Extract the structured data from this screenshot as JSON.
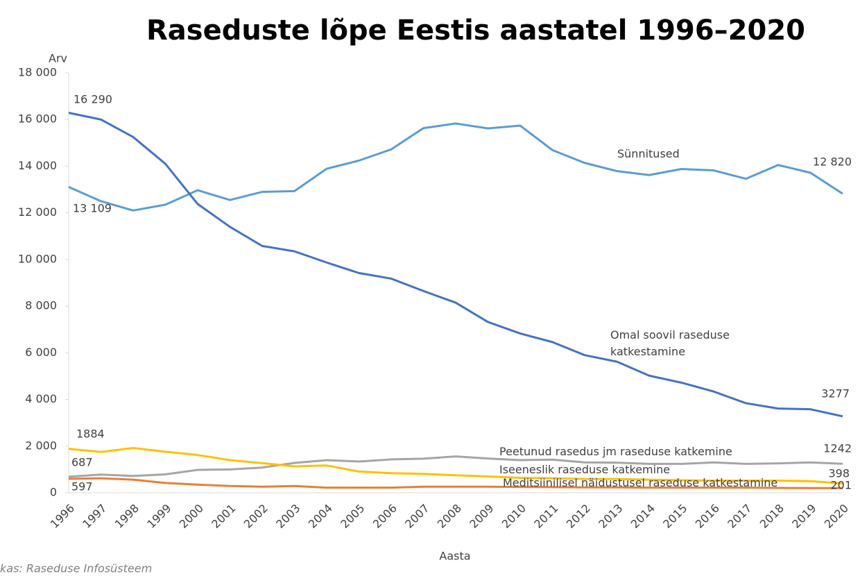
{
  "chart_data": {
    "type": "line",
    "title": "Raseduste lõpe Eestis aastatel 1996–2020",
    "y_label": "Arv",
    "x_label": "Aasta",
    "source": "kas: Raseduse Infosüsteem",
    "categories": [
      "1996",
      "1997",
      "1998",
      "1999",
      "2000",
      "2001",
      "2002",
      "2003",
      "2004",
      "2005",
      "2006",
      "2007",
      "2008",
      "2009",
      "2010",
      "2011",
      "2012",
      "2013",
      "2014",
      "2015",
      "2016",
      "2017",
      "2018",
      "2019",
      "2020"
    ],
    "ylim": [
      0,
      18000
    ],
    "yticks": [
      0,
      {
        "value": 2000,
        "label": "2 000"
      },
      {
        "value": 4000,
        "label": "4 000"
      },
      {
        "value": 6000,
        "label": "6 000"
      },
      {
        "value": 8000,
        "label": "8 000"
      },
      {
        "value": 10000,
        "label": "10 000"
      },
      {
        "value": 12000,
        "label": "12 000"
      },
      {
        "value": 14000,
        "label": "14 000"
      },
      {
        "value": 16000,
        "label": "16 000"
      },
      {
        "value": 18000,
        "label": "18 000"
      }
    ],
    "grid": false,
    "series": [
      {
        "name": "Sünnitused",
        "color": "#5b9bd5",
        "values": [
          13109,
          12500,
          12100,
          12350,
          12970,
          12550,
          12900,
          12930,
          13890,
          14240,
          14720,
          15630,
          15830,
          15620,
          15740,
          14690,
          14140,
          13790,
          13620,
          13880,
          13820,
          13460,
          14050,
          13720,
          12820
        ],
        "value_labels": [
          "13 109",
          null,
          null,
          null,
          null,
          null,
          null,
          null,
          null,
          null,
          null,
          null,
          null,
          null,
          null,
          null,
          null,
          null,
          null,
          null,
          null,
          null,
          null,
          null,
          "12 820"
        ]
      },
      {
        "name": "Omal soovil raseduse katkestamine",
        "color": "#4472c4",
        "values": [
          16290,
          16000,
          15250,
          14100,
          12380,
          11400,
          10580,
          10350,
          9870,
          9420,
          9180,
          8650,
          8150,
          7320,
          6830,
          6460,
          5900,
          5620,
          5020,
          4720,
          4340,
          3840,
          3610,
          3580,
          3277
        ],
        "value_labels": [
          "16 290",
          null,
          null,
          null,
          null,
          null,
          null,
          null,
          null,
          null,
          null,
          null,
          null,
          null,
          null,
          null,
          null,
          null,
          null,
          null,
          null,
          null,
          null,
          null,
          "3277"
        ]
      },
      {
        "name": "Peetunud rasedus jm raseduse katkemine",
        "color": "#a5a5a5",
        "values": [
          687,
          780,
          720,
          790,
          980,
          1000,
          1080,
          1280,
          1400,
          1340,
          1430,
          1460,
          1560,
          1470,
          1400,
          1420,
          1300,
          1290,
          1240,
          1240,
          1300,
          1240,
          1260,
          1300,
          1242
        ],
        "value_labels": [
          "687",
          null,
          null,
          null,
          null,
          null,
          null,
          null,
          null,
          null,
          null,
          null,
          null,
          null,
          null,
          null,
          null,
          null,
          null,
          null,
          null,
          null,
          null,
          null,
          "1242"
        ]
      },
      {
        "name": "Iseeneslik raseduse katkemine",
        "color": "#ffc000",
        "values": [
          1884,
          1750,
          1920,
          1760,
          1620,
          1400,
          1270,
          1130,
          1170,
          910,
          840,
          810,
          750,
          700,
          640,
          620,
          590,
          590,
          560,
          540,
          520,
          520,
          520,
          500,
          398
        ],
        "value_labels": [
          "1884",
          null,
          null,
          null,
          null,
          null,
          null,
          null,
          null,
          null,
          null,
          null,
          null,
          null,
          null,
          null,
          null,
          null,
          null,
          null,
          null,
          null,
          null,
          null,
          "398"
        ]
      },
      {
        "name": "Meditsiinilisel näidustusel raseduse katkestamine",
        "color": "#ed7d31",
        "values": [
          597,
          620,
          560,
          420,
          350,
          290,
          260,
          290,
          220,
          220,
          220,
          260,
          260,
          260,
          250,
          240,
          230,
          230,
          220,
          220,
          220,
          220,
          210,
          200,
          201
        ],
        "value_labels": [
          "597",
          null,
          null,
          null,
          null,
          null,
          null,
          null,
          null,
          null,
          null,
          null,
          null,
          null,
          null,
          null,
          null,
          null,
          null,
          null,
          null,
          null,
          null,
          null,
          "201"
        ]
      }
    ]
  }
}
